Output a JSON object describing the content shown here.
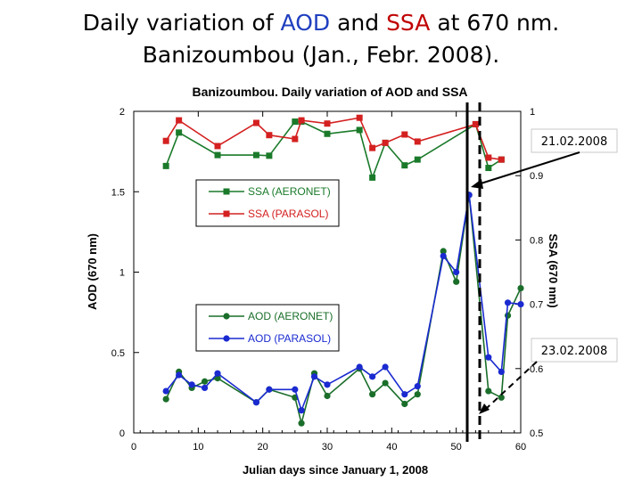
{
  "slide": {
    "title_line1_a": "Daily variation of ",
    "title_line1_aod": "AOD",
    "title_line1_b": " and ",
    "title_line1_ssa": "SSA",
    "title_line1_c": " at 670 nm.",
    "title_line2": "Banizoumbou (Jan., Febr. 2008)."
  },
  "colors": {
    "aod_title": "#1f3fbf",
    "ssa_title": "#c00000",
    "ssa_aeronet": "#1a7a2a",
    "ssa_parasol": "#d42020",
    "aod_aeronet": "#1a6e2a",
    "aod_parasol": "#1a2ad0"
  },
  "chart_data": {
    "type": "line",
    "title": "Banizoumbou. Daily variation of AOD and SSA",
    "xlabel": "Julian days since January 1, 2008",
    "ylabel_left": "AOD (670 nm)",
    "ylabel_right": "SSA (670 nm)",
    "xlim": [
      0,
      60
    ],
    "ylim_left": [
      0,
      2
    ],
    "ylim_right": [
      0.5,
      1
    ],
    "x_ticks": [
      "0",
      "10",
      "20",
      "30",
      "40",
      "50",
      "60"
    ],
    "y_left_ticks": [
      "0",
      "0.5",
      "1",
      "1.5",
      "2"
    ],
    "y_right_ticks": [
      "0.5",
      "0.6",
      "0.7",
      "0.8",
      "0.9",
      "1"
    ],
    "legend_placement": "center-left",
    "series": [
      {
        "name": "SSA (AERONET)",
        "axis": "right",
        "marker": "square",
        "color": "#1a7a2a",
        "x": [
          5,
          7,
          13,
          19,
          21,
          25,
          26,
          30,
          35,
          37,
          39,
          42,
          44,
          53,
          55,
          57
        ],
        "y": [
          0.915,
          0.967,
          0.932,
          0.932,
          0.931,
          0.984,
          0.984,
          0.965,
          0.971,
          0.897,
          0.951,
          0.916,
          0.925,
          0.98,
          0.912,
          0.925
        ]
      },
      {
        "name": "SSA (PARASOL)",
        "axis": "right",
        "marker": "square",
        "color": "#d42020",
        "x": [
          5,
          7,
          13,
          19,
          21,
          25,
          26,
          30,
          35,
          37,
          39,
          42,
          44,
          53,
          55,
          57
        ],
        "y": [
          0.954,
          0.986,
          0.946,
          0.982,
          0.963,
          0.957,
          0.986,
          0.981,
          0.99,
          0.943,
          0.951,
          0.964,
          0.953,
          0.98,
          0.928,
          0.925
        ]
      },
      {
        "name": "AOD (AERONET)",
        "axis": "left",
        "marker": "circle",
        "color": "#1a6e2a",
        "x": [
          5,
          7,
          9,
          11,
          13,
          19,
          21,
          25,
          26,
          28,
          30,
          35,
          37,
          39,
          42,
          44,
          48,
          50,
          52,
          55,
          57,
          58,
          60
        ],
        "y": [
          0.21,
          0.38,
          0.28,
          0.32,
          0.34,
          0.19,
          0.27,
          0.22,
          0.06,
          0.37,
          0.23,
          0.4,
          0.24,
          0.31,
          0.18,
          0.24,
          1.13,
          0.94,
          1.48,
          0.26,
          0.22,
          0.73,
          0.9
        ]
      },
      {
        "name": "AOD (PARASOL)",
        "axis": "left",
        "marker": "circle",
        "color": "#1a2ad0",
        "x": [
          5,
          7,
          9,
          11,
          13,
          19,
          21,
          25,
          26,
          28,
          30,
          35,
          37,
          39,
          42,
          44,
          48,
          50,
          52,
          55,
          57,
          58,
          60
        ],
        "y": [
          0.26,
          0.36,
          0.3,
          0.28,
          0.37,
          0.19,
          0.27,
          0.27,
          0.14,
          0.35,
          0.3,
          0.41,
          0.35,
          0.41,
          0.24,
          0.29,
          1.1,
          1.0,
          1.48,
          0.47,
          0.38,
          0.81,
          0.8
        ]
      }
    ],
    "annotations": [
      {
        "text": "21.02.2008",
        "day": 52
      },
      {
        "text": "23.02.2008",
        "day": 54
      }
    ]
  }
}
